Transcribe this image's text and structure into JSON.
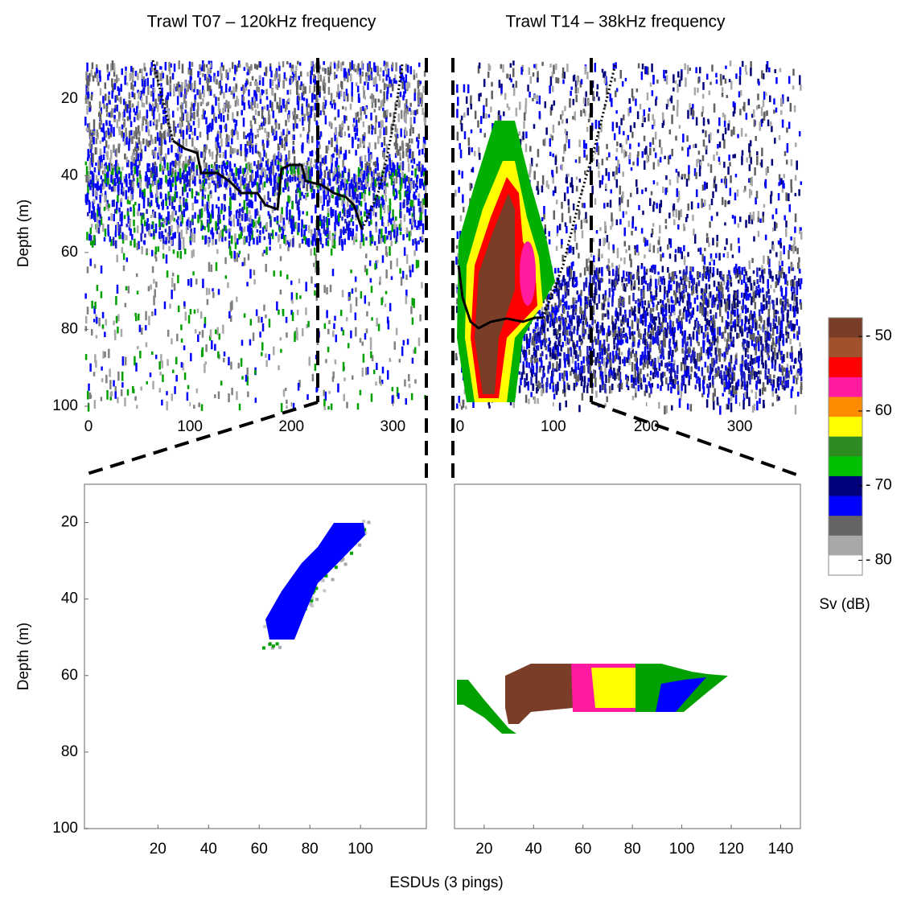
{
  "figure": {
    "xlabel": "ESDUs (3 pings)"
  },
  "chart_data": [
    {
      "type": "echogram",
      "title": "Trawl T07 – 120kHz frequency",
      "ylabel": "Depth (m)",
      "xlim": [
        -4,
        333
      ],
      "ylim": [
        10,
        100
      ],
      "yreverse": true,
      "xticks": [
        0,
        100,
        200,
        300
      ],
      "yticks": [
        20,
        40,
        60,
        80,
        100
      ],
      "frame": false
    },
    {
      "type": "echogram",
      "title": "Trawl T14 – 38kHz frequency",
      "xlim": [
        -6,
        365
      ],
      "ylim": [
        10,
        100
      ],
      "yreverse": true,
      "xticks": [
        0,
        100,
        200,
        300
      ],
      "frame": false
    },
    {
      "type": "echogram",
      "ylabel": "Depth (m)",
      "xlim": [
        -9,
        126
      ],
      "ylim": [
        10,
        100
      ],
      "yreverse": true,
      "xticks": [
        20,
        40,
        60,
        80,
        100
      ],
      "yticks": [
        20,
        40,
        60,
        80,
        100
      ],
      "frame": true
    },
    {
      "type": "echogram",
      "xlim": [
        8,
        148
      ],
      "ylim": [
        10,
        100
      ],
      "yreverse": true,
      "xticks": [
        20,
        40,
        60,
        80,
        100,
        120,
        140
      ],
      "frame": true
    }
  ],
  "colorbar": {
    "label": "Sv (dB)",
    "lim": [
      -82,
      -47.5
    ],
    "colors": [
      "#7a3e28",
      "#a0522d",
      "#ff0000",
      "#ff1aa0",
      "#ff8c00",
      "#ffff00",
      "#2e8b22",
      "#00c000",
      "#00007a",
      "#0000ff",
      "#646464",
      "#a8a8a8",
      "#ffffff"
    ],
    "ticks": [
      {
        "value": -50,
        "label": "- 50"
      },
      {
        "value": -60,
        "label": "- 60"
      },
      {
        "value": -70,
        "label": "- 70"
      },
      {
        "value": -80,
        "label": "- 80"
      }
    ]
  }
}
